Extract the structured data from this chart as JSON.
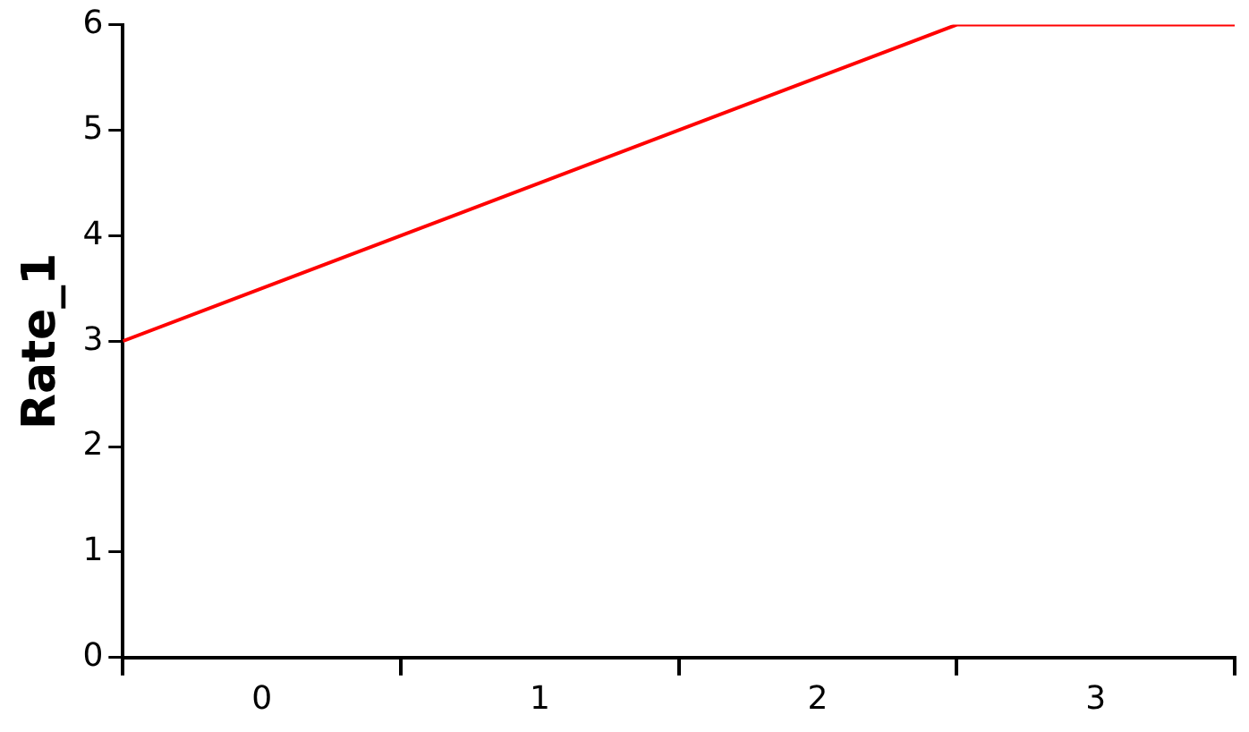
{
  "chart_data": {
    "type": "line",
    "ylabel": "Rate_1",
    "x": [
      0,
      3,
      4
    ],
    "series": [
      {
        "color": "#ff0000",
        "values": [
          3,
          6,
          6
        ]
      }
    ],
    "xlim": [
      0,
      4
    ],
    "xticks": [
      {
        "value": 0,
        "label": null
      },
      {
        "value": 0.5,
        "label": "0"
      },
      {
        "value": 1,
        "label": null
      },
      {
        "value": 1.5,
        "label": "1"
      },
      {
        "value": 2,
        "label": null
      },
      {
        "value": 2.5,
        "label": "2"
      },
      {
        "value": 3,
        "label": null
      },
      {
        "value": 3.5,
        "label": "3"
      },
      {
        "value": 4,
        "label": null
      }
    ],
    "ylim": [
      0,
      6
    ],
    "yticks": [
      0,
      1,
      2,
      3,
      4,
      5,
      6
    ],
    "grid": false,
    "legend": false
  }
}
